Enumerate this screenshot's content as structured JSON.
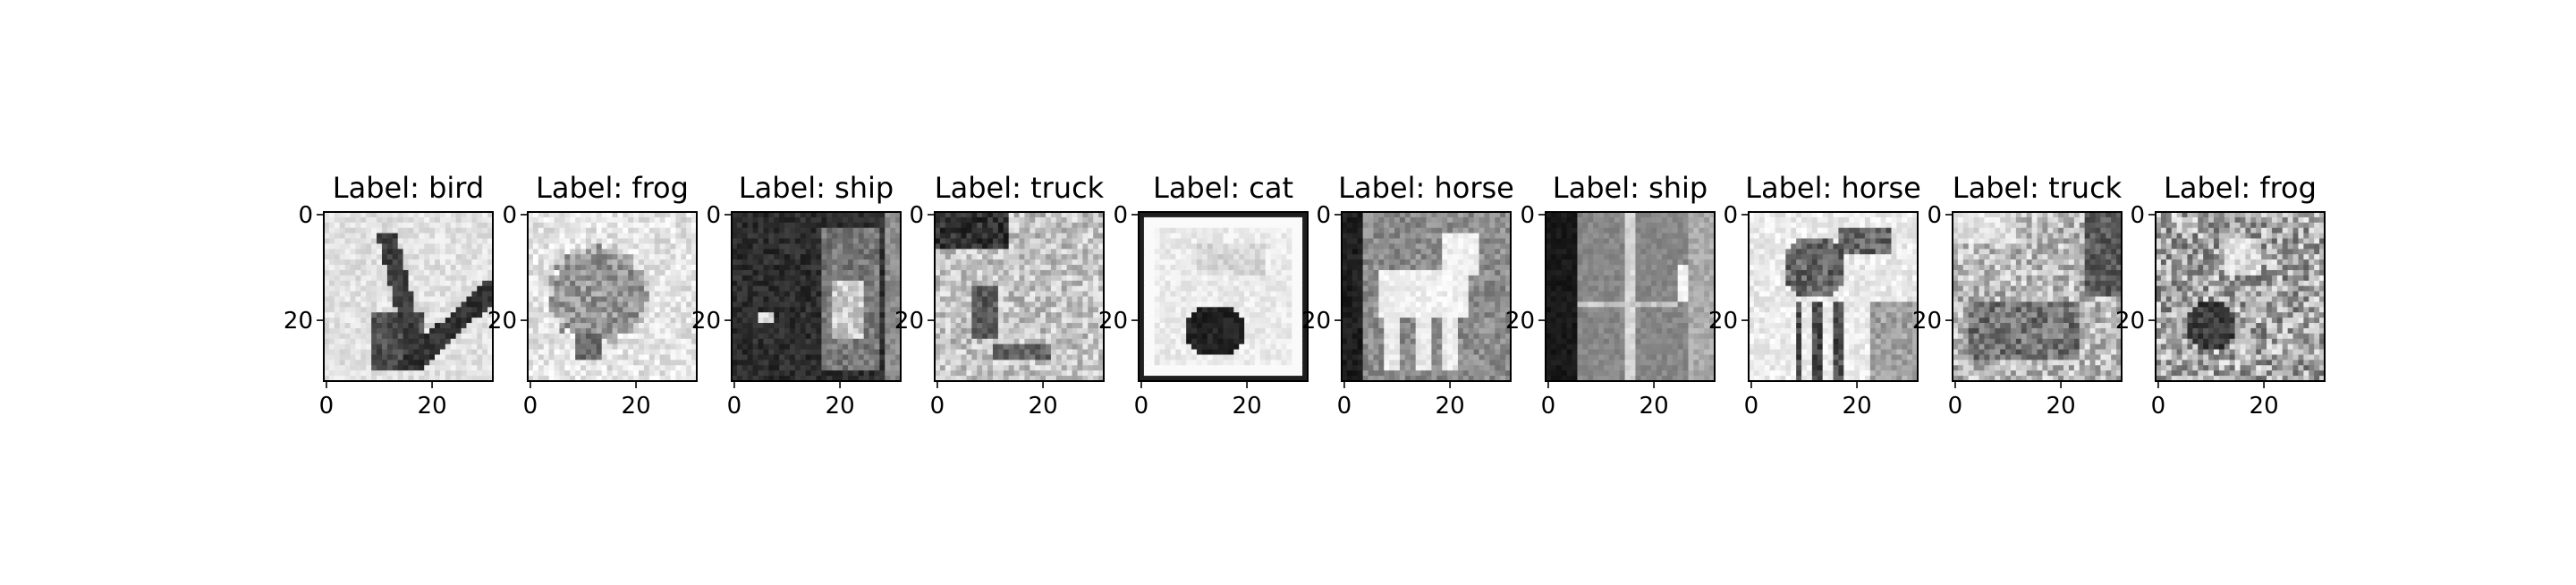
{
  "chart_data": {
    "type": "image-grid",
    "panels": [
      {
        "title": "Label: bird"
      },
      {
        "title": "Label: frog"
      },
      {
        "title": "Label: ship"
      },
      {
        "title": "Label: truck"
      },
      {
        "title": "Label: cat"
      },
      {
        "title": "Label: horse"
      },
      {
        "title": "Label: ship"
      },
      {
        "title": "Label: horse"
      },
      {
        "title": "Label: truck"
      },
      {
        "title": "Label: frog"
      }
    ],
    "xticks": [
      0,
      20
    ],
    "yticks": [
      0,
      20
    ],
    "xlim": [
      -0.5,
      31.5
    ],
    "ylim": [
      31.5,
      -0.5
    ],
    "cmap": "gray"
  }
}
